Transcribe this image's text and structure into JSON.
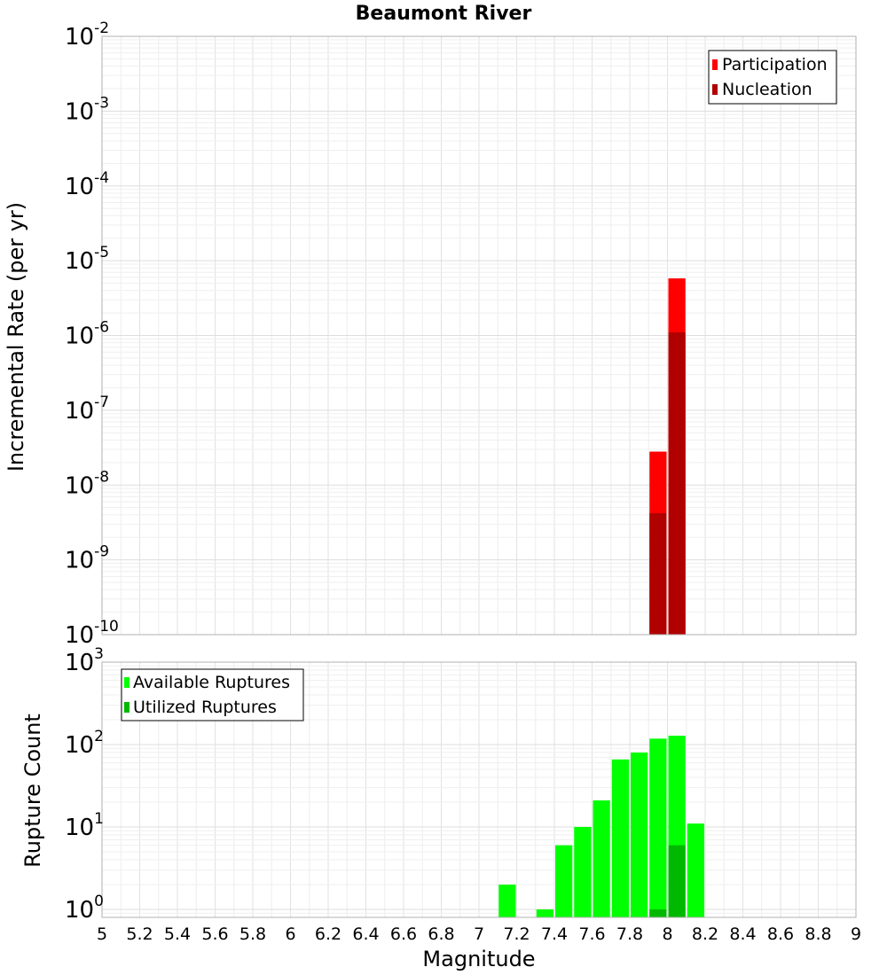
{
  "chart_data": [
    {
      "type": "bar",
      "title": "Beaumont River",
      "xlabel": "",
      "ylabel": "Incremental Rate (per yr)",
      "yscale": "log",
      "ylim": [
        1e-10,
        0.01
      ],
      "xlim": [
        5,
        9
      ],
      "bin_width": 0.1,
      "grid": true,
      "legend_position": "top-right",
      "y_tick_labels": [
        {
          "base": "10",
          "exp": "-10",
          "v": 1e-10
        },
        {
          "base": "10",
          "exp": "-9",
          "v": 1e-09
        },
        {
          "base": "10",
          "exp": "-8",
          "v": 1e-08
        },
        {
          "base": "10",
          "exp": "-7",
          "v": 1e-07
        },
        {
          "base": "10",
          "exp": "-6",
          "v": 1e-06
        },
        {
          "base": "10",
          "exp": "-5",
          "v": 1e-05
        },
        {
          "base": "10",
          "exp": "-4",
          "v": 0.0001
        },
        {
          "base": "10",
          "exp": "-3",
          "v": 0.001
        },
        {
          "base": "10",
          "exp": "-2",
          "v": 0.01
        }
      ],
      "series": [
        {
          "name": "Participation",
          "color": "#ff0000",
          "x": [
            7.95,
            8.05
          ],
          "values": [
            2.8e-08,
            5.8e-06
          ]
        },
        {
          "name": "Nucleation",
          "color": "#b00000",
          "x": [
            7.95,
            8.05
          ],
          "values": [
            4.2e-09,
            1.1e-06
          ]
        }
      ]
    },
    {
      "type": "bar",
      "title": "",
      "xlabel": "Magnitude",
      "ylabel": "Rupture Count",
      "yscale": "log",
      "ylim": [
        0.8,
        1000
      ],
      "xlim": [
        5,
        9
      ],
      "bin_width": 0.1,
      "grid": true,
      "legend_position": "top-left",
      "x_ticks": [
        "5",
        "5.2",
        "5.4",
        "5.6",
        "5.8",
        "6",
        "6.2",
        "6.4",
        "6.6",
        "6.8",
        "7",
        "7.2",
        "7.4",
        "7.6",
        "7.8",
        "8",
        "8.2",
        "8.4",
        "8.6",
        "8.8",
        "9"
      ],
      "y_tick_labels": [
        {
          "base": "10",
          "exp": "0",
          "v": 1
        },
        {
          "base": "10",
          "exp": "1",
          "v": 10
        },
        {
          "base": "10",
          "exp": "2",
          "v": 100
        },
        {
          "base": "10",
          "exp": "3",
          "v": 1000
        }
      ],
      "series": [
        {
          "name": "Available Ruptures",
          "color": "#00ff00",
          "x": [
            7.15,
            7.35,
            7.45,
            7.55,
            7.65,
            7.75,
            7.85,
            7.95,
            8.05,
            8.15
          ],
          "values": [
            2,
            1,
            6,
            10,
            21,
            66,
            80,
            118,
            128,
            11
          ]
        },
        {
          "name": "Utilized Ruptures",
          "color": "#00b800",
          "x": [
            7.95,
            8.05
          ],
          "values": [
            1,
            6
          ]
        }
      ]
    }
  ]
}
